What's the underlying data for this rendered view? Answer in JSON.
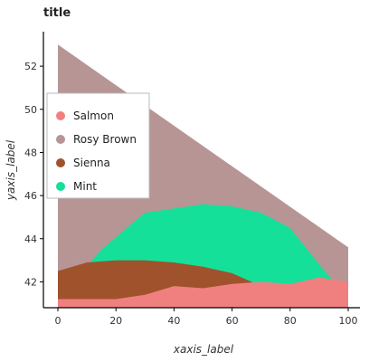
{
  "chart_data": {
    "type": "area",
    "title": "title",
    "xlabel": "xaxis_label",
    "ylabel": "yaxis_label",
    "xlim": [
      0,
      100
    ],
    "ylim": [
      40.8,
      53.6
    ],
    "x_ticks": [
      "0",
      "20",
      "40",
      "60",
      "80",
      "100"
    ],
    "y_ticks": [
      "42",
      "44",
      "46",
      "48",
      "50",
      "52"
    ],
    "legend_position": "left",
    "grid": false,
    "series": [
      {
        "name": "Rosy Brown",
        "color": "#b79595",
        "points": [
          [
            0,
            53.0
          ],
          [
            100,
            43.6
          ]
        ]
      },
      {
        "name": "Mint",
        "color": "#14e09a",
        "points": [
          [
            0,
            41.2
          ],
          [
            15,
            43.5
          ],
          [
            30,
            45.2
          ],
          [
            50,
            45.6
          ],
          [
            60,
            45.5
          ],
          [
            70,
            45.2
          ],
          [
            80,
            44.5
          ],
          [
            90,
            42.8
          ],
          [
            100,
            41.2
          ]
        ]
      },
      {
        "name": "Sienna",
        "color": "#a0522d",
        "points": [
          [
            0,
            42.5
          ],
          [
            10,
            42.9
          ],
          [
            20,
            43.0
          ],
          [
            30,
            43.0
          ],
          [
            40,
            42.9
          ],
          [
            50,
            42.7
          ],
          [
            60,
            42.4
          ],
          [
            70,
            41.8
          ],
          [
            80,
            41.3
          ],
          [
            90,
            41.2
          ],
          [
            100,
            41.2
          ]
        ]
      },
      {
        "name": "Salmon",
        "color": "#f08080",
        "points": [
          [
            0,
            41.2
          ],
          [
            20,
            41.2
          ],
          [
            30,
            41.4
          ],
          [
            40,
            41.8
          ],
          [
            50,
            41.7
          ],
          [
            60,
            41.9
          ],
          [
            70,
            42.0
          ],
          [
            80,
            41.9
          ],
          [
            90,
            42.2
          ],
          [
            100,
            42.0
          ]
        ]
      }
    ],
    "legend": [
      "Salmon",
      "Rosy Brown",
      "Sienna",
      "Mint"
    ]
  }
}
